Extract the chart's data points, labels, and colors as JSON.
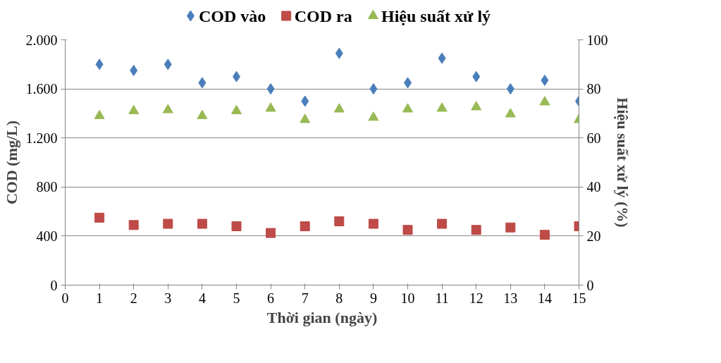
{
  "chart_data": {
    "type": "scatter",
    "xlabel": "Thời gian (ngày)",
    "ylabel": "COD (mg/L)",
    "y2label": "Hiệu suất xử lý (%)",
    "x": [
      1,
      2,
      3,
      4,
      5,
      6,
      7,
      8,
      9,
      10,
      11,
      12,
      13,
      14,
      15
    ],
    "xlim": [
      0,
      15
    ],
    "xticks": [
      0,
      1,
      2,
      3,
      4,
      5,
      6,
      7,
      8,
      9,
      10,
      11,
      12,
      13,
      14,
      15
    ],
    "ylim": [
      0,
      2000
    ],
    "yticks": [
      0,
      400,
      800,
      {
        "value": 1200,
        "label": "1.200"
      },
      {
        "value": 1600,
        "label": "1.600"
      },
      {
        "value": 2000,
        "label": "2.000"
      }
    ],
    "y2lim": [
      0,
      100
    ],
    "y2ticks": [
      0,
      20,
      40,
      60,
      80,
      100
    ],
    "grid": "y",
    "legend": "top",
    "series": [
      {
        "name": "COD vào",
        "color": "#4a7ebb",
        "marker": "diamond",
        "values": [
          1800,
          1750,
          1800,
          1650,
          1700,
          1600,
          1500,
          1890,
          1600,
          1650,
          1850,
          1700,
          1600,
          1670,
          1500
        ]
      },
      {
        "name": "COD ra",
        "color": "#be4b48",
        "marker": "square",
        "values": [
          550,
          490,
          500,
          500,
          480,
          425,
          480,
          520,
          500,
          450,
          500,
          450,
          470,
          410,
          480
        ]
      },
      {
        "name": "Hiệu suất xử lý",
        "color": "#98b954",
        "marker": "triangle",
        "axis": "y2",
        "values": [
          69,
          71,
          71.4,
          69,
          71,
          72,
          67.4,
          71.7,
          68.3,
          71.7,
          72,
          72.6,
          69.7,
          74.6,
          67.4
        ]
      }
    ]
  }
}
